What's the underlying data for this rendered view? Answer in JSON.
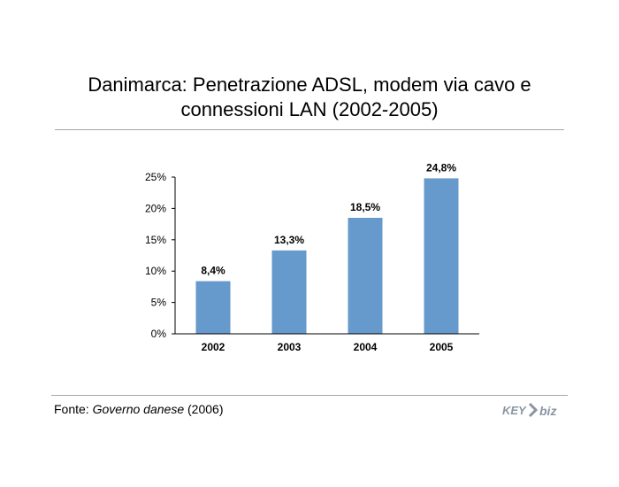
{
  "title": {
    "line1": "Danimarca: Penetrazione ADSL, modem via cavo e",
    "line2": "connessioni LAN (2002-2005)"
  },
  "chart_data": {
    "type": "bar",
    "categories": [
      "2002",
      "2003",
      "2004",
      "2005"
    ],
    "values": [
      8.4,
      13.3,
      18.5,
      24.8
    ],
    "data_labels": [
      "8,4%",
      "13,3%",
      "18,5%",
      "24,8%"
    ],
    "ylim": [
      0,
      25
    ],
    "yticks": [
      0,
      5,
      10,
      15,
      20,
      25
    ],
    "ytick_labels": [
      "0%",
      "5%",
      "10%",
      "15%",
      "20%",
      "25%"
    ],
    "bar_color": "#6699cc",
    "grid": false,
    "legend": "none"
  },
  "footer": {
    "prefix": "Fonte: ",
    "source": "Governo danese",
    "suffix": " (2006)"
  },
  "logo": {
    "text_left": "KEY",
    "text_right": "biz",
    "color": "#8a95a3"
  }
}
